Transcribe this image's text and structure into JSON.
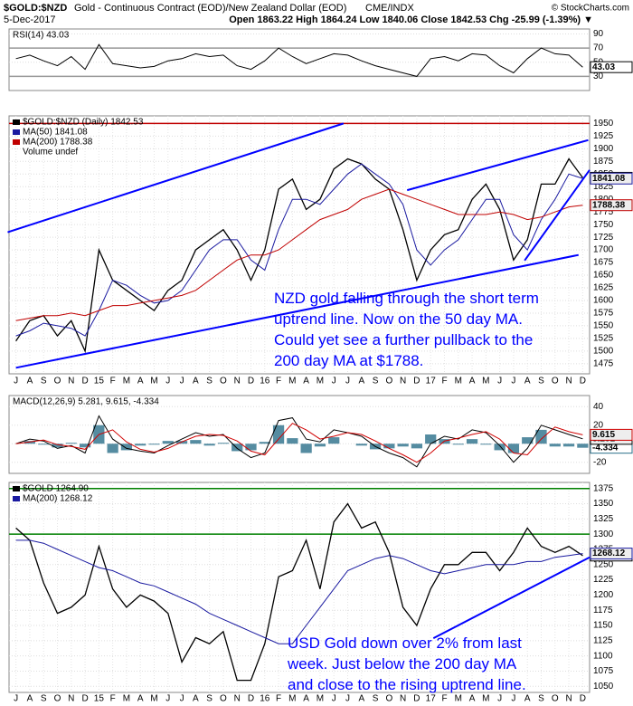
{
  "header": {
    "symbol": "$GOLD:$NZD",
    "description": "Gold - Continuous Contract (EOD)/New Zealand Dollar (EOD)",
    "exchange": "CME/INDX",
    "date": "5-Dec-2017",
    "quote": "Open 1863.22  High 1864.24  Low 1840.06  Close 1842.53  Chg -25.99 (-1.39%) ▼",
    "credit": "© StockCharts.com"
  },
  "chart_data": [
    {
      "type": "line",
      "title": "RSI(14) 43.03",
      "ylim": [
        10,
        97
      ],
      "yticks": [
        30,
        50,
        70,
        90
      ],
      "hlines": [
        {
          "value": 70,
          "color": "#999"
        },
        {
          "value": 30,
          "color": "#999"
        }
      ],
      "series": [
        {
          "name": "RSI(14)",
          "color": "#000000",
          "values": [
            55,
            60,
            52,
            45,
            58,
            40,
            75,
            48,
            45,
            42,
            44,
            52,
            55,
            62,
            58,
            60,
            45,
            40,
            52,
            70,
            58,
            48,
            55,
            62,
            60,
            52,
            45,
            40,
            35,
            30,
            55,
            58,
            52,
            62,
            60,
            45,
            35,
            55,
            70,
            62,
            60,
            43.03
          ]
        }
      ]
    },
    {
      "type": "line",
      "categories": [
        "J",
        "A",
        "S",
        "O",
        "N",
        "D",
        "15",
        "F",
        "M",
        "A",
        "M",
        "J",
        "J",
        "A",
        "S",
        "O",
        "N",
        "D",
        "16",
        "F",
        "M",
        "A",
        "M",
        "J",
        "J",
        "A",
        "S",
        "O",
        "N",
        "D",
        "17",
        "F",
        "M",
        "A",
        "M",
        "J",
        "J",
        "A",
        "S",
        "O",
        "N",
        "D"
      ],
      "ylim": [
        1455,
        1965
      ],
      "yticks": [
        1475,
        1500,
        1525,
        1550,
        1575,
        1600,
        1625,
        1650,
        1675,
        1700,
        1725,
        1750,
        1775,
        1800,
        1825,
        1850,
        1875,
        1900,
        1925,
        1950
      ],
      "hlines": [
        {
          "value": 1950,
          "color": "#c00000"
        }
      ],
      "note": "Volume undef",
      "series": [
        {
          "name": "$GOLD:$NZD (Daily) 1842.53",
          "color": "#000000",
          "values": [
            1520,
            1560,
            1570,
            1530,
            1560,
            1500,
            1700,
            1640,
            1620,
            1600,
            1580,
            1620,
            1640,
            1700,
            1720,
            1740,
            1700,
            1640,
            1700,
            1820,
            1840,
            1780,
            1800,
            1860,
            1880,
            1870,
            1840,
            1820,
            1740,
            1640,
            1700,
            1730,
            1740,
            1800,
            1830,
            1780,
            1680,
            1720,
            1830,
            1830,
            1880,
            1842.53
          ]
        },
        {
          "name": "MA(50) 1841.08",
          "color": "#1a1aa0",
          "values": [
            1530,
            1540,
            1555,
            1550,
            1545,
            1530,
            1580,
            1640,
            1630,
            1610,
            1595,
            1600,
            1620,
            1660,
            1700,
            1720,
            1720,
            1680,
            1660,
            1740,
            1800,
            1800,
            1790,
            1820,
            1850,
            1870,
            1850,
            1830,
            1790,
            1700,
            1670,
            1700,
            1720,
            1760,
            1800,
            1800,
            1730,
            1700,
            1760,
            1800,
            1850,
            1841.08
          ]
        },
        {
          "name": "MA(200) 1788.38",
          "color": "#c00000",
          "values": [
            1560,
            1565,
            1570,
            1570,
            1575,
            1570,
            1580,
            1590,
            1590,
            1595,
            1600,
            1605,
            1610,
            1620,
            1640,
            1660,
            1680,
            1690,
            1690,
            1700,
            1720,
            1740,
            1760,
            1770,
            1780,
            1800,
            1810,
            1820,
            1810,
            1800,
            1790,
            1780,
            1770,
            1770,
            1770,
            1775,
            1770,
            1760,
            1765,
            1775,
            1785,
            1788.38
          ]
        }
      ],
      "trendlines": [
        {
          "x": [
            0,
            40.7
          ],
          "y": [
            1467,
            1690
          ],
          "color": "#0000ff"
        },
        {
          "x": [
            -0.6,
            23.7
          ],
          "y": [
            1735,
            1950
          ],
          "color": "#0000ff"
        },
        {
          "x": [
            28.3,
            41.4
          ],
          "y": [
            1818,
            1917
          ],
          "color": "#0000ff"
        },
        {
          "x": [
            36.8,
            41.5
          ],
          "y": [
            1679,
            1858
          ],
          "color": "#0000ff"
        }
      ],
      "annotation": [
        "NZD gold falling through the short term",
        "uptrend line. Now on the 50 day MA.",
        "Could yet see a further pullback to the",
        "200 day MA at $1788."
      ]
    },
    {
      "type": "line",
      "title": "MACD(12,26,9) 5.281, 9.615, -4.334",
      "ylim": [
        -32,
        52
      ],
      "yticks": [
        -20,
        0,
        20,
        40
      ],
      "series": [
        {
          "type": "bar",
          "color": "#2a6f8a",
          "values": [
            0,
            3,
            -1,
            -4,
            1,
            -4,
            20,
            -10,
            -7,
            -2,
            -1,
            3,
            3,
            4,
            -2,
            1,
            -8,
            -7,
            2,
            20,
            6,
            -10,
            -3,
            7,
            0,
            -2,
            -6,
            -5,
            -3,
            -5,
            10,
            5,
            -1,
            5,
            -1,
            -7,
            -10,
            7,
            15,
            -3,
            -3,
            -4.334
          ]
        },
        {
          "color": "#000000",
          "values": [
            0,
            5,
            3,
            -5,
            -2,
            -10,
            30,
            5,
            -5,
            -8,
            -10,
            -2,
            5,
            12,
            8,
            10,
            -5,
            -15,
            -10,
            25,
            28,
            5,
            2,
            15,
            12,
            8,
            -3,
            -10,
            -15,
            -25,
            0,
            8,
            5,
            15,
            12,
            -2,
            -20,
            -5,
            20,
            15,
            10,
            5.281
          ]
        },
        {
          "color": "#d00000",
          "values": [
            0,
            2,
            4,
            -1,
            -3,
            -6,
            10,
            15,
            2,
            -6,
            -9,
            -5,
            2,
            8,
            10,
            9,
            3,
            -8,
            -12,
            5,
            22,
            15,
            5,
            8,
            12,
            10,
            3,
            -5,
            -12,
            -20,
            -10,
            3,
            6,
            10,
            13,
            5,
            -10,
            -12,
            5,
            18,
            13,
            9.615
          ]
        }
      ]
    },
    {
      "type": "line",
      "categories": [
        "J",
        "A",
        "S",
        "O",
        "N",
        "D",
        "15",
        "F",
        "M",
        "A",
        "M",
        "J",
        "J",
        "A",
        "S",
        "O",
        "N",
        "D",
        "16",
        "F",
        "M",
        "A",
        "M",
        "J",
        "J",
        "A",
        "S",
        "O",
        "N",
        "D",
        "17",
        "F",
        "M",
        "A",
        "M",
        "J",
        "J",
        "A",
        "S",
        "O",
        "N",
        "D"
      ],
      "ylim": [
        1040,
        1385
      ],
      "yticks": [
        1050,
        1075,
        1100,
        1125,
        1150,
        1175,
        1200,
        1225,
        1250,
        1275,
        1300,
        1325,
        1350,
        1375
      ],
      "hlines": [
        {
          "value": 1375,
          "color": "#008000"
        },
        {
          "value": 1300,
          "color": "#008000"
        }
      ],
      "last_label": "1264.90",
      "series": [
        {
          "name": "$GOLD 1264.90",
          "color": "#000000",
          "values": [
            1310,
            1290,
            1220,
            1170,
            1180,
            1200,
            1280,
            1210,
            1180,
            1200,
            1190,
            1170,
            1090,
            1130,
            1120,
            1140,
            1060,
            1060,
            1120,
            1230,
            1240,
            1290,
            1210,
            1320,
            1350,
            1310,
            1320,
            1270,
            1180,
            1150,
            1210,
            1250,
            1250,
            1270,
            1270,
            1240,
            1270,
            1310,
            1280,
            1270,
            1280,
            1264.9
          ]
        },
        {
          "name": "MA(200) 1268.12",
          "color": "#1a1aa0",
          "values": [
            1290,
            1290,
            1285,
            1275,
            1265,
            1255,
            1245,
            1240,
            1230,
            1220,
            1215,
            1205,
            1195,
            1185,
            1170,
            1160,
            1150,
            1140,
            1130,
            1120,
            1120,
            1150,
            1180,
            1210,
            1240,
            1250,
            1260,
            1265,
            1260,
            1250,
            1240,
            1235,
            1240,
            1245,
            1250,
            1250,
            1250,
            1255,
            1255,
            1262,
            1265,
            1268.12
          ]
        }
      ],
      "trendlines": [
        {
          "x": [
            30.2,
            41.5
          ],
          "y": [
            1129,
            1262
          ],
          "color": "#0000ff"
        }
      ],
      "annotation": [
        "USD Gold down over 2% from last",
        "week. Just below the 200 day MA",
        "and close to the rising uptrend line."
      ]
    }
  ]
}
